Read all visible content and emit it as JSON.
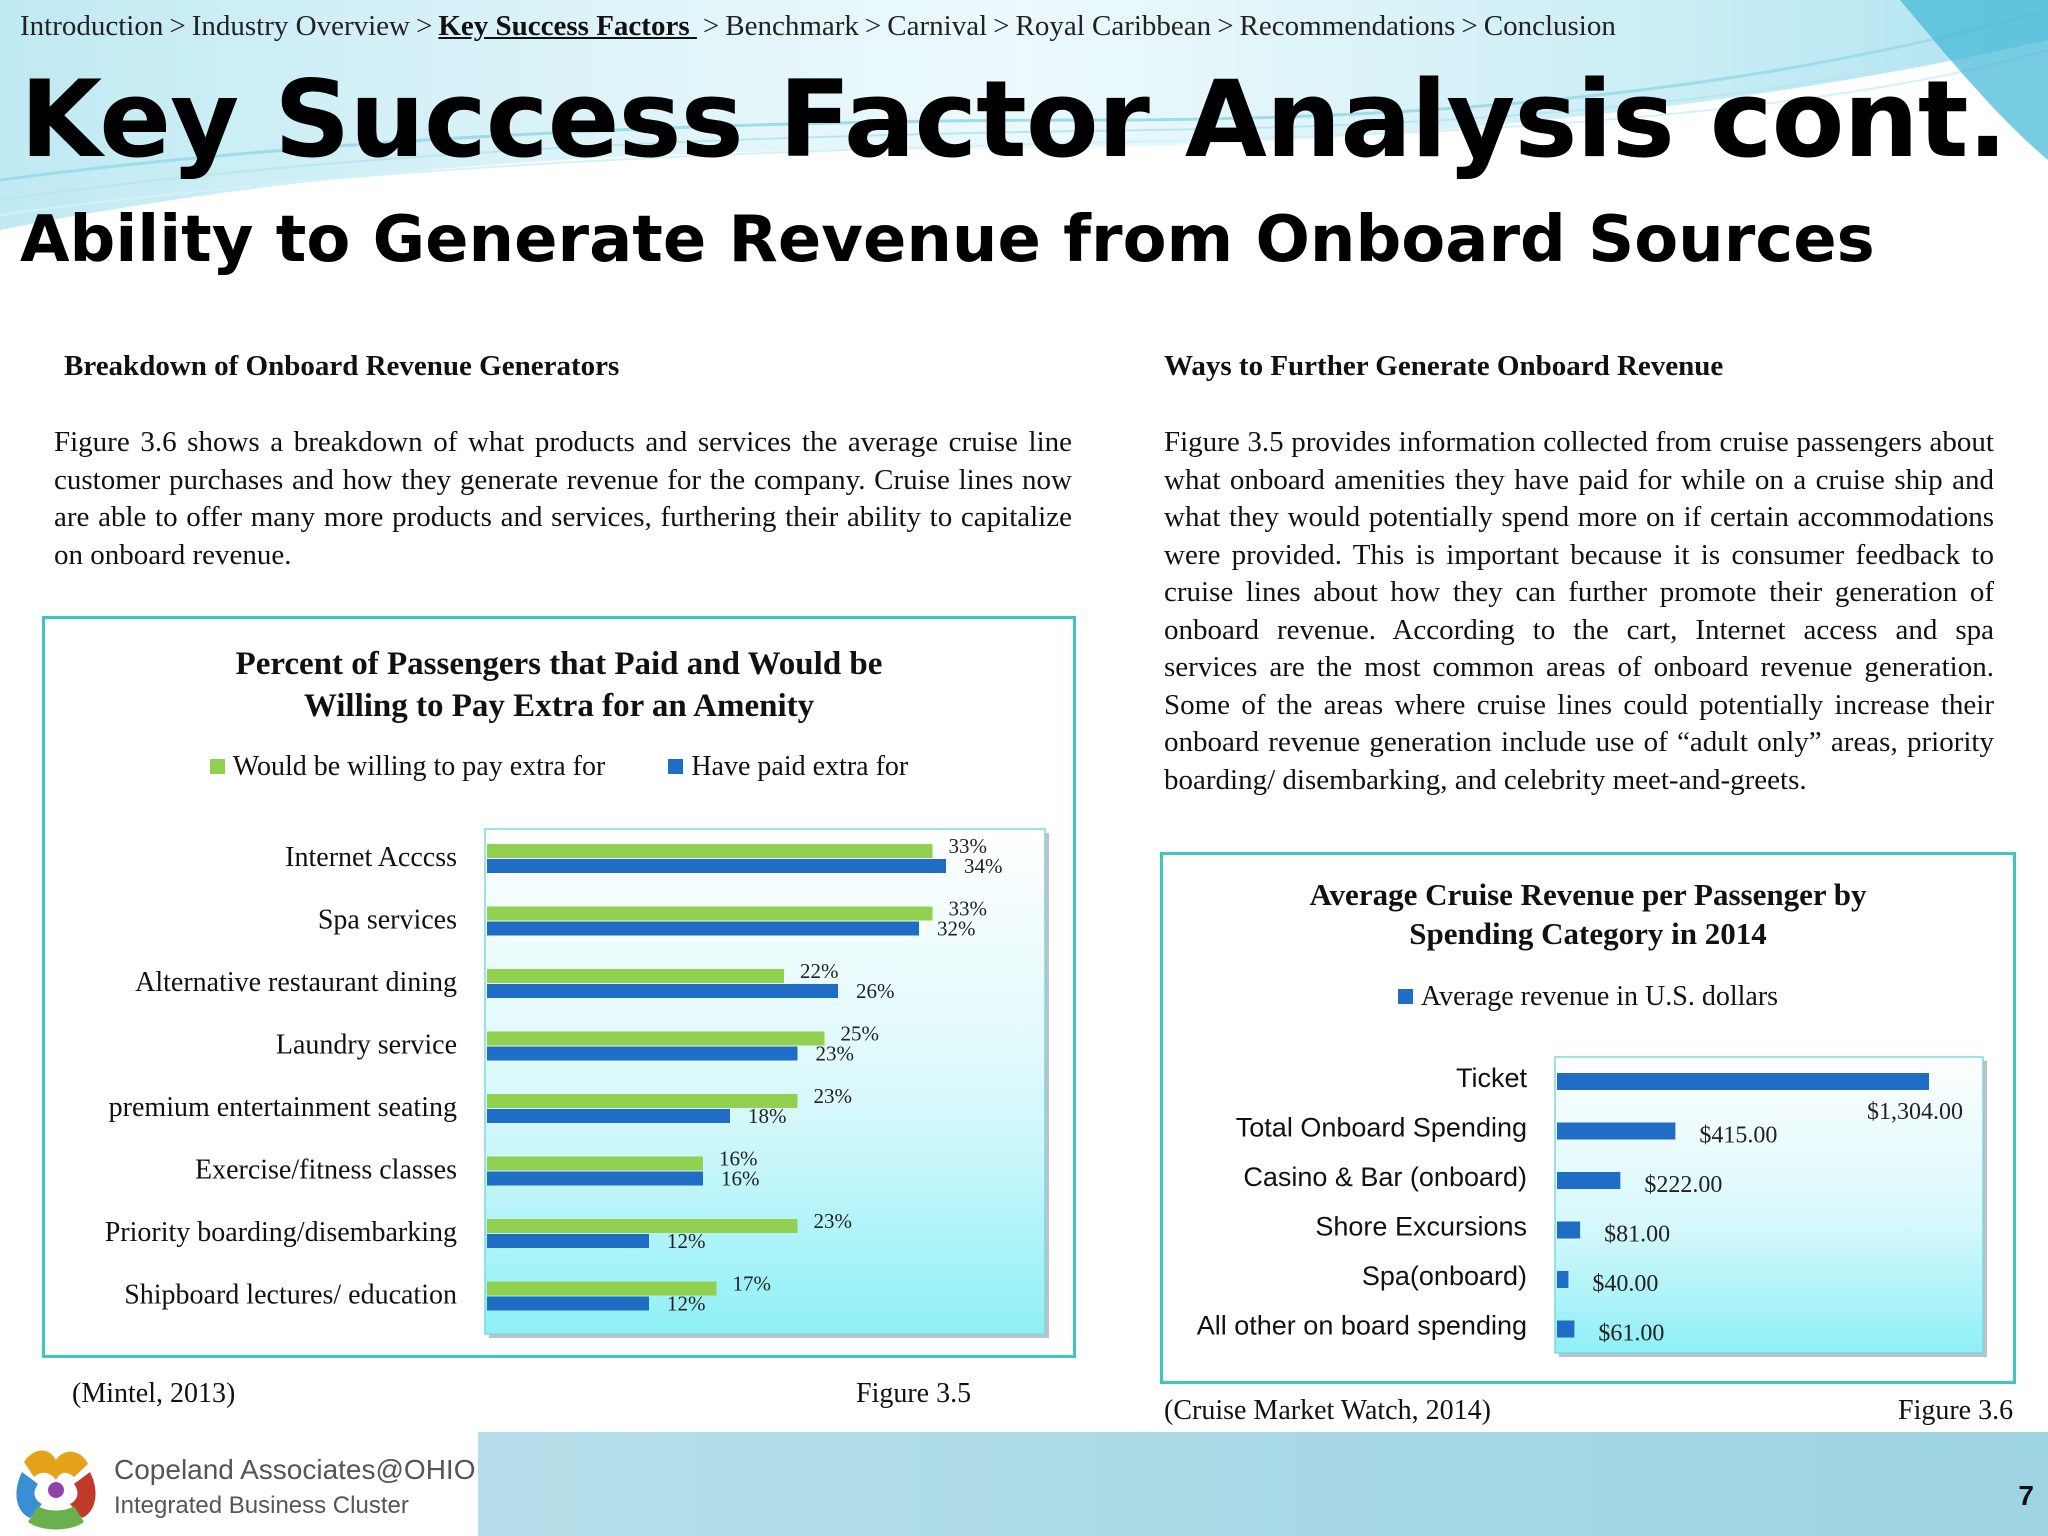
{
  "breadcrumb": [
    {
      "label": "Introduction",
      "active": false
    },
    {
      "label": "Industry Overview",
      "active": false
    },
    {
      "label": "Key Success Factors ",
      "active": true
    },
    {
      "label": "Benchmark",
      "active": false
    },
    {
      "label": "Carnival",
      "active": false
    },
    {
      "label": "Royal Caribbean",
      "active": false
    },
    {
      "label": "Recommendations",
      "active": false
    },
    {
      "label": "Conclusion",
      "active": false
    }
  ],
  "breadcrumb_separator": ">",
  "title": "Key Success Factor Analysis cont.",
  "subtitle": "Ability to Generate Revenue from Onboard Sources",
  "left": {
    "heading": "Breakdown of Onboard Revenue Generators",
    "paragraph": "Figure 3.6 shows a breakdown of what products and services the average cruise line customer purchases and how they generate revenue for the company. Cruise lines now are able to offer many more products and services, furthering their ability to capitalize on onboard revenue.",
    "source": "(Mintel, 2013)",
    "figure": "Figure 3.5"
  },
  "right": {
    "heading": "Ways to Further Generate Onboard Revenue",
    "paragraph": "Figure 3.5 provides information collected from cruise passengers about what onboard amenities they have paid for while on a cruise ship and what they would potentially spend more on if certain accommodations were provided. This is important because it is consumer feedback to cruise lines about how they can further promote their generation of onboard revenue. According to the cart, Internet access and spa services are the most common areas of onboard revenue generation. Some of the areas where cruise lines could potentially increase their onboard revenue generation include use of “adult only” areas, priority boarding/ disembarking, and celebrity meet-and-greets.",
    "source": "(Cruise Market Watch, 2014)",
    "figure": "Figure 3.6"
  },
  "chart_data": [
    {
      "type": "bar",
      "orientation": "horizontal",
      "title_lines": [
        "Percent of Passengers that Paid and Would be",
        "Willing to Pay Extra for an Amenity"
      ],
      "categories": [
        "Internet Acccss",
        "Spa services",
        "Alternative restaurant dining",
        "Laundry service",
        "premium entertainment seating",
        "Exercise/fitness classes",
        "Priority boarding/disembarking",
        "Shipboard lectures/ education"
      ],
      "series": [
        {
          "name": "Would be willing to pay extra for",
          "values": [
            33,
            33,
            22,
            25,
            23,
            16,
            23,
            17
          ],
          "labels": [
            "33%",
            "33%",
            "22%",
            "25%",
            "23%",
            "16%",
            "23%",
            "17%"
          ],
          "color": "#92d050"
        },
        {
          "name": "Have paid extra for",
          "values": [
            34,
            32,
            26,
            23,
            18,
            16,
            12,
            12
          ],
          "labels": [
            "34%",
            "32%",
            "26%",
            "23%",
            "18%",
            "16%",
            "12%",
            "12%"
          ],
          "color": "#1f6dc4"
        }
      ],
      "xlim": [
        0,
        40
      ],
      "legend": "top",
      "grid": false
    },
    {
      "type": "bar",
      "orientation": "horizontal",
      "title_lines": [
        "Average Cruise Revenue per Passenger by",
        "Spending Category  in 2014"
      ],
      "categories": [
        "Ticket",
        "Total Onboard Spending",
        "Casino & Bar (onboard)",
        "Shore Excursions",
        "Spa(onboard)",
        "All other on board spending"
      ],
      "series": [
        {
          "name": "Average revenue in U.S. dollars",
          "values": [
            1304,
            415,
            222,
            81,
            40,
            61
          ],
          "labels": [
            "$1,304.00",
            "$415.00",
            "$222.00",
            "$81.00",
            "$40.00",
            "$61.00"
          ],
          "color": "#1f6dc4"
        }
      ],
      "xlim": [
        0,
        1500
      ],
      "legend": "top",
      "grid": false
    }
  ],
  "footer": {
    "logo_line1": "Copeland Associates@OHIO",
    "logo_line2": "Integrated Business Cluster",
    "page_number": "7"
  },
  "colors": {
    "accent_teal": "#3fc4c4",
    "green": "#92d050",
    "blue": "#1f6dc4",
    "plot_bg": "#aef1f6"
  },
  "icons": [
    "puzzle-hands-logo-icon"
  ]
}
